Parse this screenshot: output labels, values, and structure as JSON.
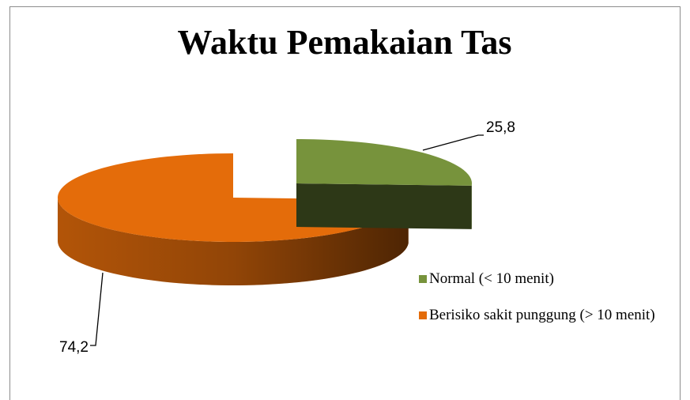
{
  "chart_data": {
    "type": "pie",
    "title": "Waktu Pemakaian Tas",
    "categories": [
      "Normal (< 10 menit)",
      "Berisiko sakit punggung (> 10 menit)"
    ],
    "values": [
      25.8,
      74.2
    ],
    "value_labels": [
      "25,8",
      "74,2"
    ],
    "colors": [
      "#77933c",
      "#e46c0a"
    ],
    "legend": "right"
  }
}
